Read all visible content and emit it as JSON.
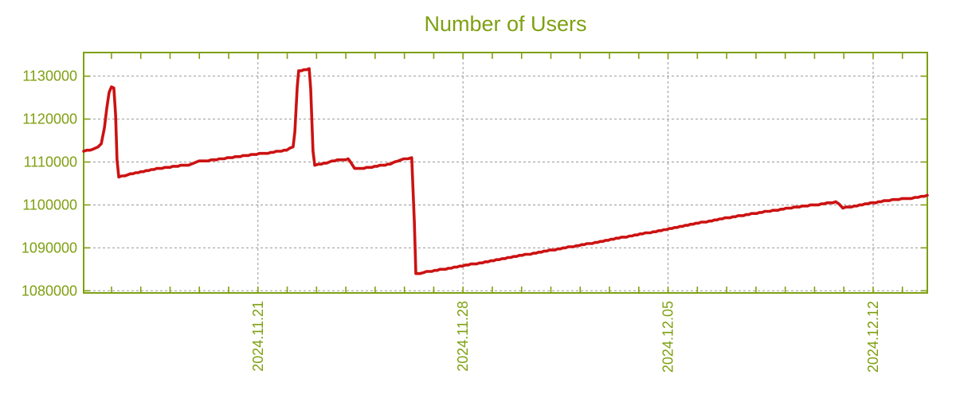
{
  "title": "Number of Users",
  "colors": {
    "accent_green": "#7EA011",
    "line_red": "#CC1212",
    "grid_gray": "#999999",
    "background": "#FFFFFF"
  },
  "chart_data": {
    "type": "line",
    "title": "Number of Users",
    "series": [
      {
        "name": "Number of Users",
        "color": "#CC1212",
        "points_t_days_vs_users": [
          [
            0.0,
            1112500
          ],
          [
            0.33,
            1112900
          ],
          [
            0.49,
            1113600
          ],
          [
            0.6,
            1114300
          ],
          [
            0.71,
            1118000
          ],
          [
            0.79,
            1122500
          ],
          [
            0.87,
            1126300
          ],
          [
            0.95,
            1127500
          ],
          [
            1.03,
            1127200
          ],
          [
            1.09,
            1121000
          ],
          [
            1.14,
            1110500
          ],
          [
            1.2,
            1106600
          ],
          [
            1.5,
            1107000
          ],
          [
            2.04,
            1107800
          ],
          [
            2.58,
            1108500
          ],
          [
            2.86,
            1108800
          ],
          [
            3.4,
            1109200
          ],
          [
            3.67,
            1109400
          ],
          [
            3.94,
            1110200
          ],
          [
            4.35,
            1110400
          ],
          [
            4.9,
            1110900
          ],
          [
            5.44,
            1111400
          ],
          [
            5.9,
            1111800
          ],
          [
            6.39,
            1112200
          ],
          [
            6.93,
            1112800
          ],
          [
            7.15,
            1113600
          ],
          [
            7.21,
            1117000
          ],
          [
            7.29,
            1127500
          ],
          [
            7.34,
            1131200
          ],
          [
            7.61,
            1131500
          ],
          [
            7.7,
            1131800
          ],
          [
            7.75,
            1127000
          ],
          [
            7.83,
            1112500
          ],
          [
            7.89,
            1109300
          ],
          [
            8.02,
            1109400
          ],
          [
            8.57,
            1110300
          ],
          [
            9.03,
            1110700
          ],
          [
            9.11,
            1110100
          ],
          [
            9.25,
            1108400
          ],
          [
            9.38,
            1108400
          ],
          [
            9.93,
            1108900
          ],
          [
            10.47,
            1109600
          ],
          [
            10.74,
            1110200
          ],
          [
            10.93,
            1110700
          ],
          [
            11.2,
            1111000
          ],
          [
            11.29,
            1096000
          ],
          [
            11.34,
            1083900
          ],
          [
            11.61,
            1084300
          ],
          [
            12.16,
            1084900
          ],
          [
            13.03,
            1085900
          ],
          [
            14.09,
            1087200
          ],
          [
            15.07,
            1088400
          ],
          [
            16.18,
            1089700
          ],
          [
            17.27,
            1091000
          ],
          [
            18.36,
            1092400
          ],
          [
            19.44,
            1093700
          ],
          [
            19.99,
            1094500
          ],
          [
            21.08,
            1095900
          ],
          [
            22.16,
            1097200
          ],
          [
            23.25,
            1098400
          ],
          [
            24.34,
            1099500
          ],
          [
            25.18,
            1100200
          ],
          [
            25.67,
            1100700
          ],
          [
            25.78,
            1100200
          ],
          [
            25.92,
            1099300
          ],
          [
            26.3,
            1099700
          ],
          [
            26.95,
            1100500
          ],
          [
            27.5,
            1101100
          ],
          [
            28.04,
            1101500
          ],
          [
            28.48,
            1101700
          ],
          [
            28.8,
            1102300
          ]
        ]
      }
    ],
    "x_axis": {
      "unit": "days from left edge of plot",
      "xlim": [
        0,
        28.8
      ],
      "major_ticks": [
        {
          "t": 5.95,
          "label": "2024.11.21"
        },
        {
          "t": 12.95,
          "label": "2024.11.28"
        },
        {
          "t": 19.95,
          "label": "2024.12.05"
        },
        {
          "t": 26.95,
          "label": "2024.12.12"
        }
      ],
      "minor_tick_first": 0.95,
      "minor_tick_step": 1,
      "label_rotation_deg": -90
    },
    "y_axis": {
      "ylim": [
        1079500,
        1135500
      ],
      "ticks": [
        1080000,
        1090000,
        1100000,
        1110000,
        1120000,
        1130000
      ]
    },
    "grid": "dashed gray at every y tick and at weekly x major ticks",
    "legend": "none"
  }
}
